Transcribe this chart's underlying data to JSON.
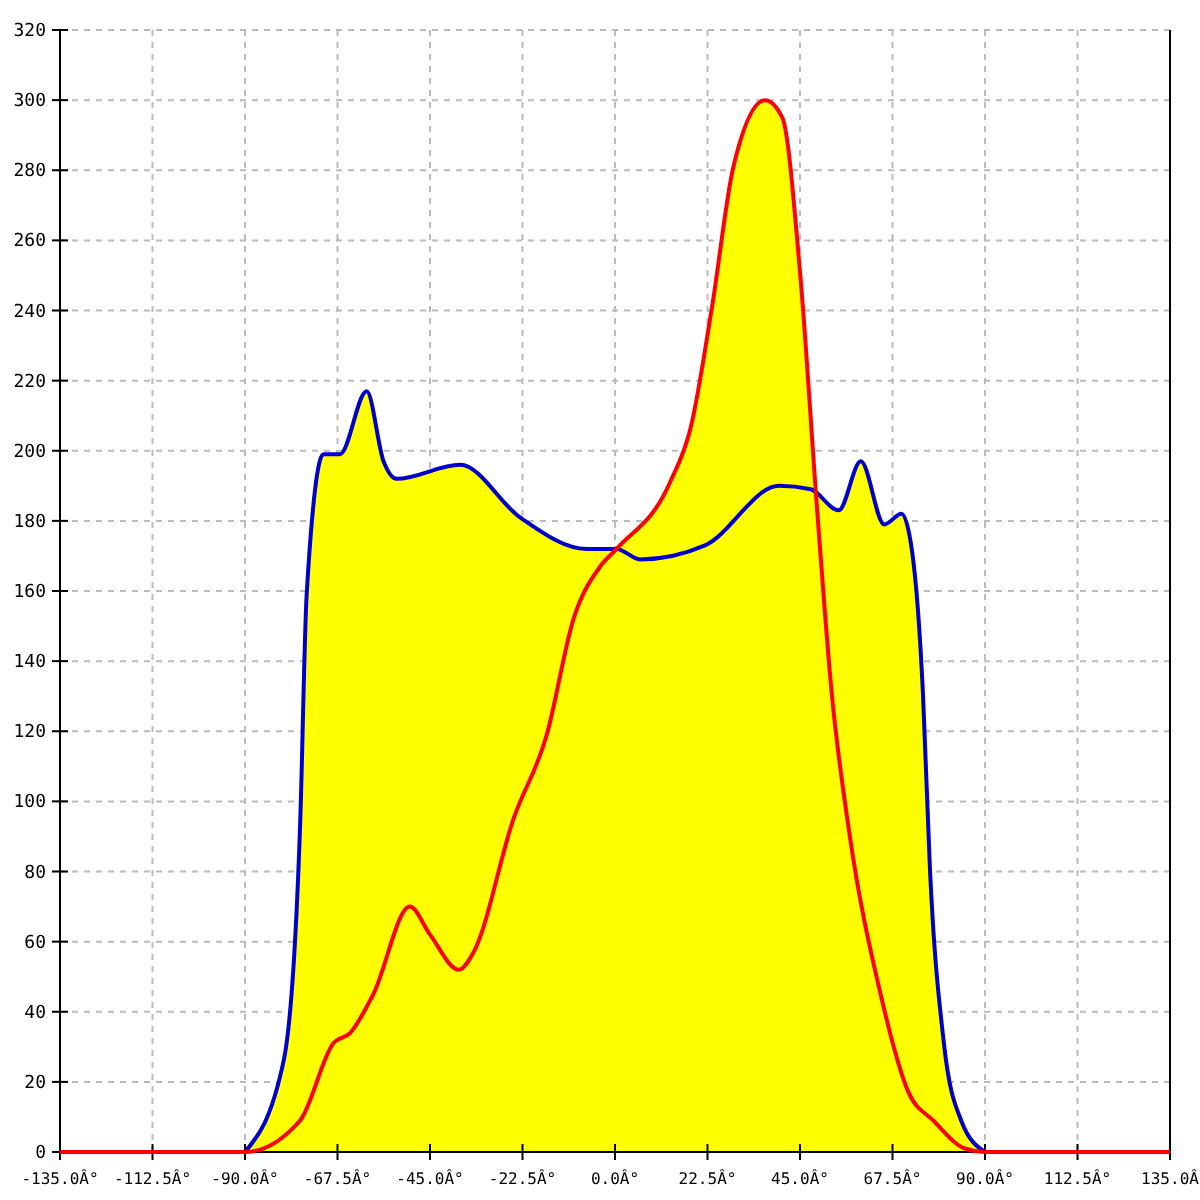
{
  "chart_data": {
    "type": "line",
    "xlim": [
      -135,
      135
    ],
    "ylim": [
      0,
      320
    ],
    "xticks": [
      {
        "value": -135,
        "label": "-135.0Â°"
      },
      {
        "value": -112.5,
        "label": "-112.5Â°"
      },
      {
        "value": -90,
        "label": "-90.0Â°"
      },
      {
        "value": -67.5,
        "label": "-67.5Â°"
      },
      {
        "value": -45,
        "label": "-45.0Â°"
      },
      {
        "value": -22.5,
        "label": "-22.5Â°"
      },
      {
        "value": 0,
        "label": "0.0Â°"
      },
      {
        "value": 22.5,
        "label": "22.5Â°"
      },
      {
        "value": 45,
        "label": "45.0Â°"
      },
      {
        "value": 67.5,
        "label": "67.5Â°"
      },
      {
        "value": 90,
        "label": "90.0Â°"
      },
      {
        "value": 112.5,
        "label": "112.5Â°"
      },
      {
        "value": 135,
        "label": "135.0Â"
      }
    ],
    "yticks": [
      0,
      20,
      40,
      60,
      80,
      100,
      120,
      140,
      160,
      180,
      200,
      220,
      240,
      260,
      280,
      300,
      320
    ],
    "grid": true,
    "line_style": "solid",
    "series": [
      {
        "color": "#0000cc",
        "x": [
          -90,
          -80.6,
          -76.6,
          -75,
          -70.9,
          -66.9,
          -60.4,
          -56.3,
          -53.1,
          -37.7,
          -23.1,
          -6.9,
          0.4,
          6.1,
          21.9,
          39.9,
          47.6,
          54.4,
          59.8,
          65.5,
          69.7,
          72.3,
          74.9,
          76.6,
          80,
          84.2,
          90
        ],
        "values": [
          0,
          26,
          93,
          159,
          199,
          199,
          217,
          197,
          192,
          196,
          181,
          172,
          172,
          169,
          173,
          190,
          189,
          183,
          197,
          179,
          182,
          171,
          131,
          81,
          31,
          9,
          0
        ]
      },
      {
        "color": "#ff0000",
        "x": [
          -135,
          -90,
          -76.6,
          -68.5,
          -64.4,
          -58.8,
          -49.9,
          -45,
          -38,
          -34.4,
          -24.7,
          -16.6,
          -10.1,
          -3.6,
          0.4,
          13.4,
          18.5,
          23.6,
          28.8,
          36.5,
          40.7,
          45,
          49.3,
          52.7,
          57,
          64.6,
          71.4,
          77.4,
          85.1,
          90,
          135
        ],
        "values": [
          0,
          0,
          9,
          31,
          34,
          45,
          70,
          62,
          52,
          57,
          95,
          119,
          152,
          167,
          172,
          191,
          207,
          241,
          281,
          300,
          295,
          251,
          181,
          131,
          91,
          45,
          17,
          9,
          1,
          0,
          0
        ]
      }
    ]
  }
}
